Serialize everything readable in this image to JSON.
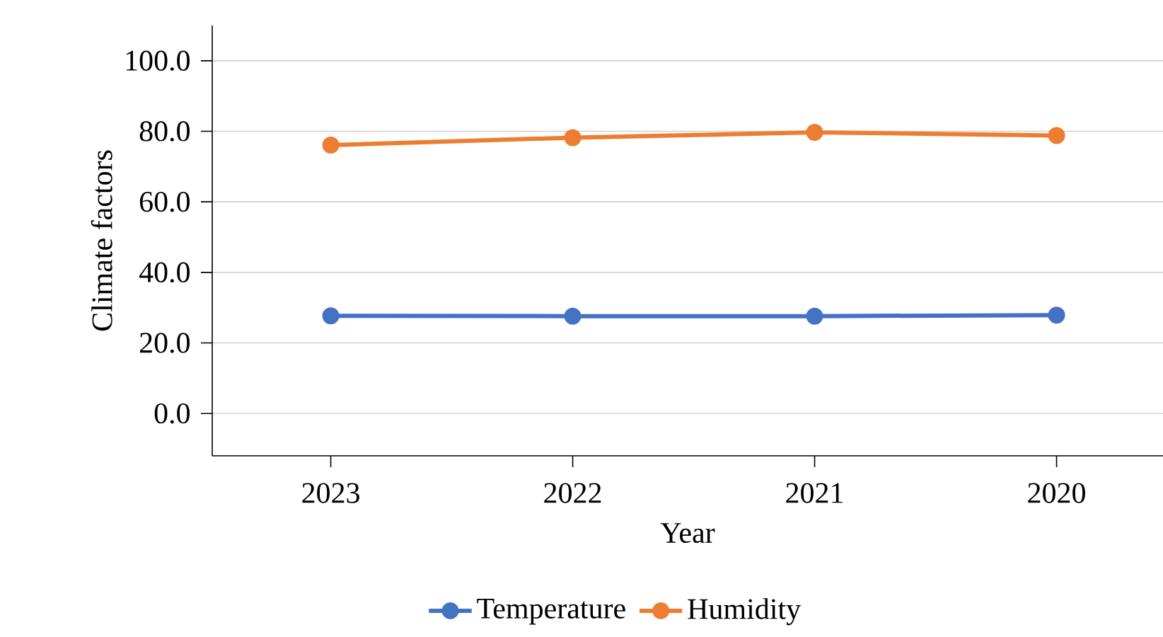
{
  "chart_data": {
    "type": "line",
    "xlabel": "Year",
    "ylabel": "Climate factors",
    "categories": [
      "2023",
      "2022",
      "2021",
      "2020"
    ],
    "series": [
      {
        "name": "Temperature",
        "color": "#4472c4",
        "values": [
          27.7,
          27.6,
          27.6,
          27.9
        ]
      },
      {
        "name": "Humidity",
        "color": "#ed7d31",
        "values": [
          76.1,
          78.2,
          79.7,
          78.8
        ]
      }
    ],
    "ylim": [
      -12,
      110
    ],
    "yticks": [
      {
        "value": 0,
        "label": "0.0"
      },
      {
        "value": 20,
        "label": "20.0"
      },
      {
        "value": 40,
        "label": "40.0"
      },
      {
        "value": 60,
        "label": "60.0"
      },
      {
        "value": 80,
        "label": "80.0"
      },
      {
        "value": 100,
        "label": "100.0"
      }
    ],
    "grid": "y",
    "legend": "bottom",
    "marker": "circle",
    "line_style": "solid"
  }
}
